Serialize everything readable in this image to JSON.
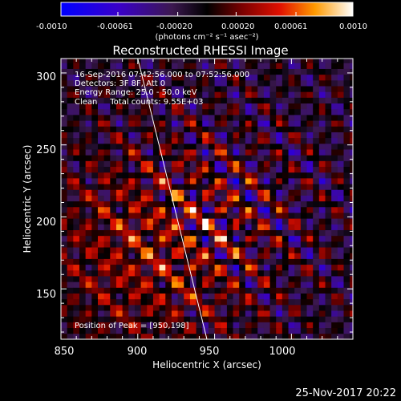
{
  "chart_data": {
    "type": "heatmap",
    "title": "Reconstructed RHESSI Image",
    "xlabel": "Heliocentric X (arcsec)",
    "ylabel": "Heliocentric Y (arcsec)",
    "xlim": [
      850,
      1040
    ],
    "ylim": [
      115,
      310
    ],
    "x_ticks": [
      "850",
      "900",
      "950",
      "1000"
    ],
    "y_ticks": [
      "150",
      "200",
      "250",
      "300"
    ],
    "x_tick_values": [
      850,
      900,
      950,
      1000
    ],
    "y_tick_values": [
      150,
      200,
      250,
      300
    ],
    "grid": false,
    "colorbar": {
      "orientation": "horizontal",
      "position": "top",
      "min": -0.001,
      "max": 0.001,
      "ticks": [
        "-0.0010",
        "-0.00061",
        "-0.00020",
        "0.00020",
        "0.00061",
        "0.0010"
      ],
      "tick_values": [
        -0.001,
        -0.00061,
        -0.0002,
        0.0002,
        0.00061,
        0.001
      ],
      "units": "(photons cm⁻² s⁻¹ asec⁻²)",
      "colormap": "blue-purple-black-red-yellow-white"
    },
    "annotations": {
      "time_range": "16-Sep-2016 07:42:56.000 to 07:52:56.000",
      "detectors": "Detectors: 3F 8F, Att 0",
      "energy": "Energy Range: 25.0 - 50.0 keV",
      "clean_counts": "Clean     Total counts: 9.55E+03",
      "peak": "Position of Peak = [950,198]"
    },
    "peak_position": [
      950,
      198
    ],
    "limb_line": {
      "x": [
        900,
        945
      ],
      "y": [
        310,
        115
      ]
    }
  },
  "footer": {
    "date": "25-Nov-2017 20:22"
  },
  "colors": {
    "background": "#000000",
    "text": "#ffffff",
    "limb_line": "#ffffff"
  }
}
